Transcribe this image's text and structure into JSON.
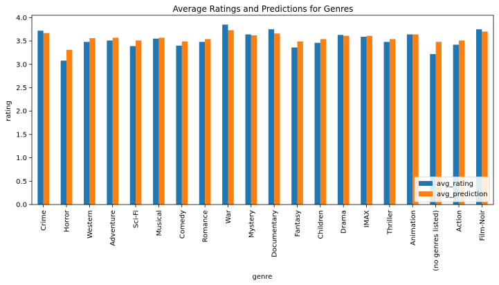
{
  "colors": {
    "avg_rating": "#1f77b4",
    "avg_prediction": "#ff7f0e"
  },
  "chart_data": {
    "type": "bar",
    "title": "Average Ratings and Predictions for Genres",
    "xlabel": "genre",
    "ylabel": "rating",
    "ylim": [
      0,
      4.05
    ],
    "yticks": [
      "0.0",
      "0.5",
      "1.0",
      "1.5",
      "2.0",
      "2.5",
      "3.0",
      "3.5",
      "4.0"
    ],
    "legend_position": "lower-right",
    "grid": false,
    "categories": [
      "Crime",
      "Horror",
      "Western",
      "Adventure",
      "Sci-Fi",
      "Musical",
      "Comedy",
      "Romance",
      "War",
      "Mystery",
      "Documentary",
      "Fantasy",
      "Children",
      "Drama",
      "IMAX",
      "Thriller",
      "Animation",
      "(no genres listed)",
      "Action",
      "Film-Noir"
    ],
    "series": [
      {
        "name": "avg_rating",
        "values": [
          3.72,
          3.08,
          3.48,
          3.51,
          3.39,
          3.55,
          3.4,
          3.48,
          3.85,
          3.64,
          3.75,
          3.36,
          3.46,
          3.63,
          3.59,
          3.48,
          3.64,
          3.22,
          3.42,
          3.75
        ]
      },
      {
        "name": "avg_prediction",
        "values": [
          3.67,
          3.31,
          3.56,
          3.57,
          3.51,
          3.57,
          3.49,
          3.54,
          3.73,
          3.62,
          3.66,
          3.49,
          3.54,
          3.61,
          3.61,
          3.54,
          3.64,
          3.48,
          3.51,
          3.7
        ]
      }
    ]
  }
}
